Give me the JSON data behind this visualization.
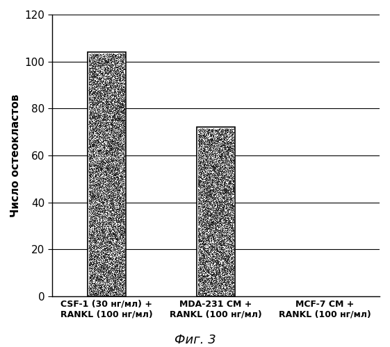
{
  "categories": [
    "CSF-1 (30 нг/мл) +\nRANKL (100 нг/мл)",
    "MDA-231 CM +\nRANKL (100 нг/мл)",
    "MCF-7 CM +\nRANKL (100 нг/мл)"
  ],
  "values": [
    104,
    72,
    0
  ],
  "ylim": [
    0,
    120
  ],
  "yticks": [
    0,
    20,
    40,
    60,
    80,
    100,
    120
  ],
  "ylabel": "Число остеокластов",
  "caption": "Фиг. 3",
  "background_color": "#ffffff",
  "bar_width": 0.35,
  "grid_color": "#000000",
  "bar_positions": [
    0,
    1,
    2
  ],
  "xlim": [
    -0.5,
    2.5
  ],
  "ytick_fontsize": 11,
  "ylabel_fontsize": 11,
  "xtick_fontsize": 9
}
